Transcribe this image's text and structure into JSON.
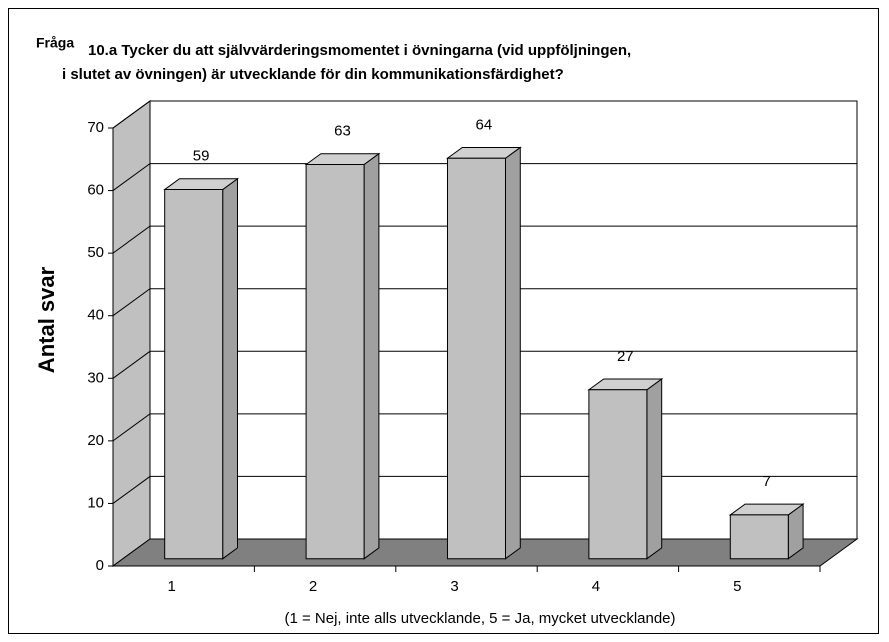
{
  "chart_data": {
    "type": "bar",
    "title": [
      "Fråga",
      "10.a Tycker du att självvärderingsmomentet i övningarna (vid uppföljningen,",
      "i slutet av övningen) är utvecklande för din kommunikationsfärdighet?"
    ],
    "y_label": "Antal svar",
    "x_label": "(1 = Nej, inte alls utvecklande, 5 = Ja, mycket utvecklande)",
    "categories": [
      "1",
      "2",
      "3",
      "4",
      "5"
    ],
    "values": [
      59,
      63,
      64,
      27,
      7
    ],
    "color": "#c0c0c0",
    "ylim": [
      0,
      70
    ],
    "yticks": [
      0,
      10,
      20,
      30,
      40,
      50,
      60,
      70
    ],
    "grid": true
  }
}
